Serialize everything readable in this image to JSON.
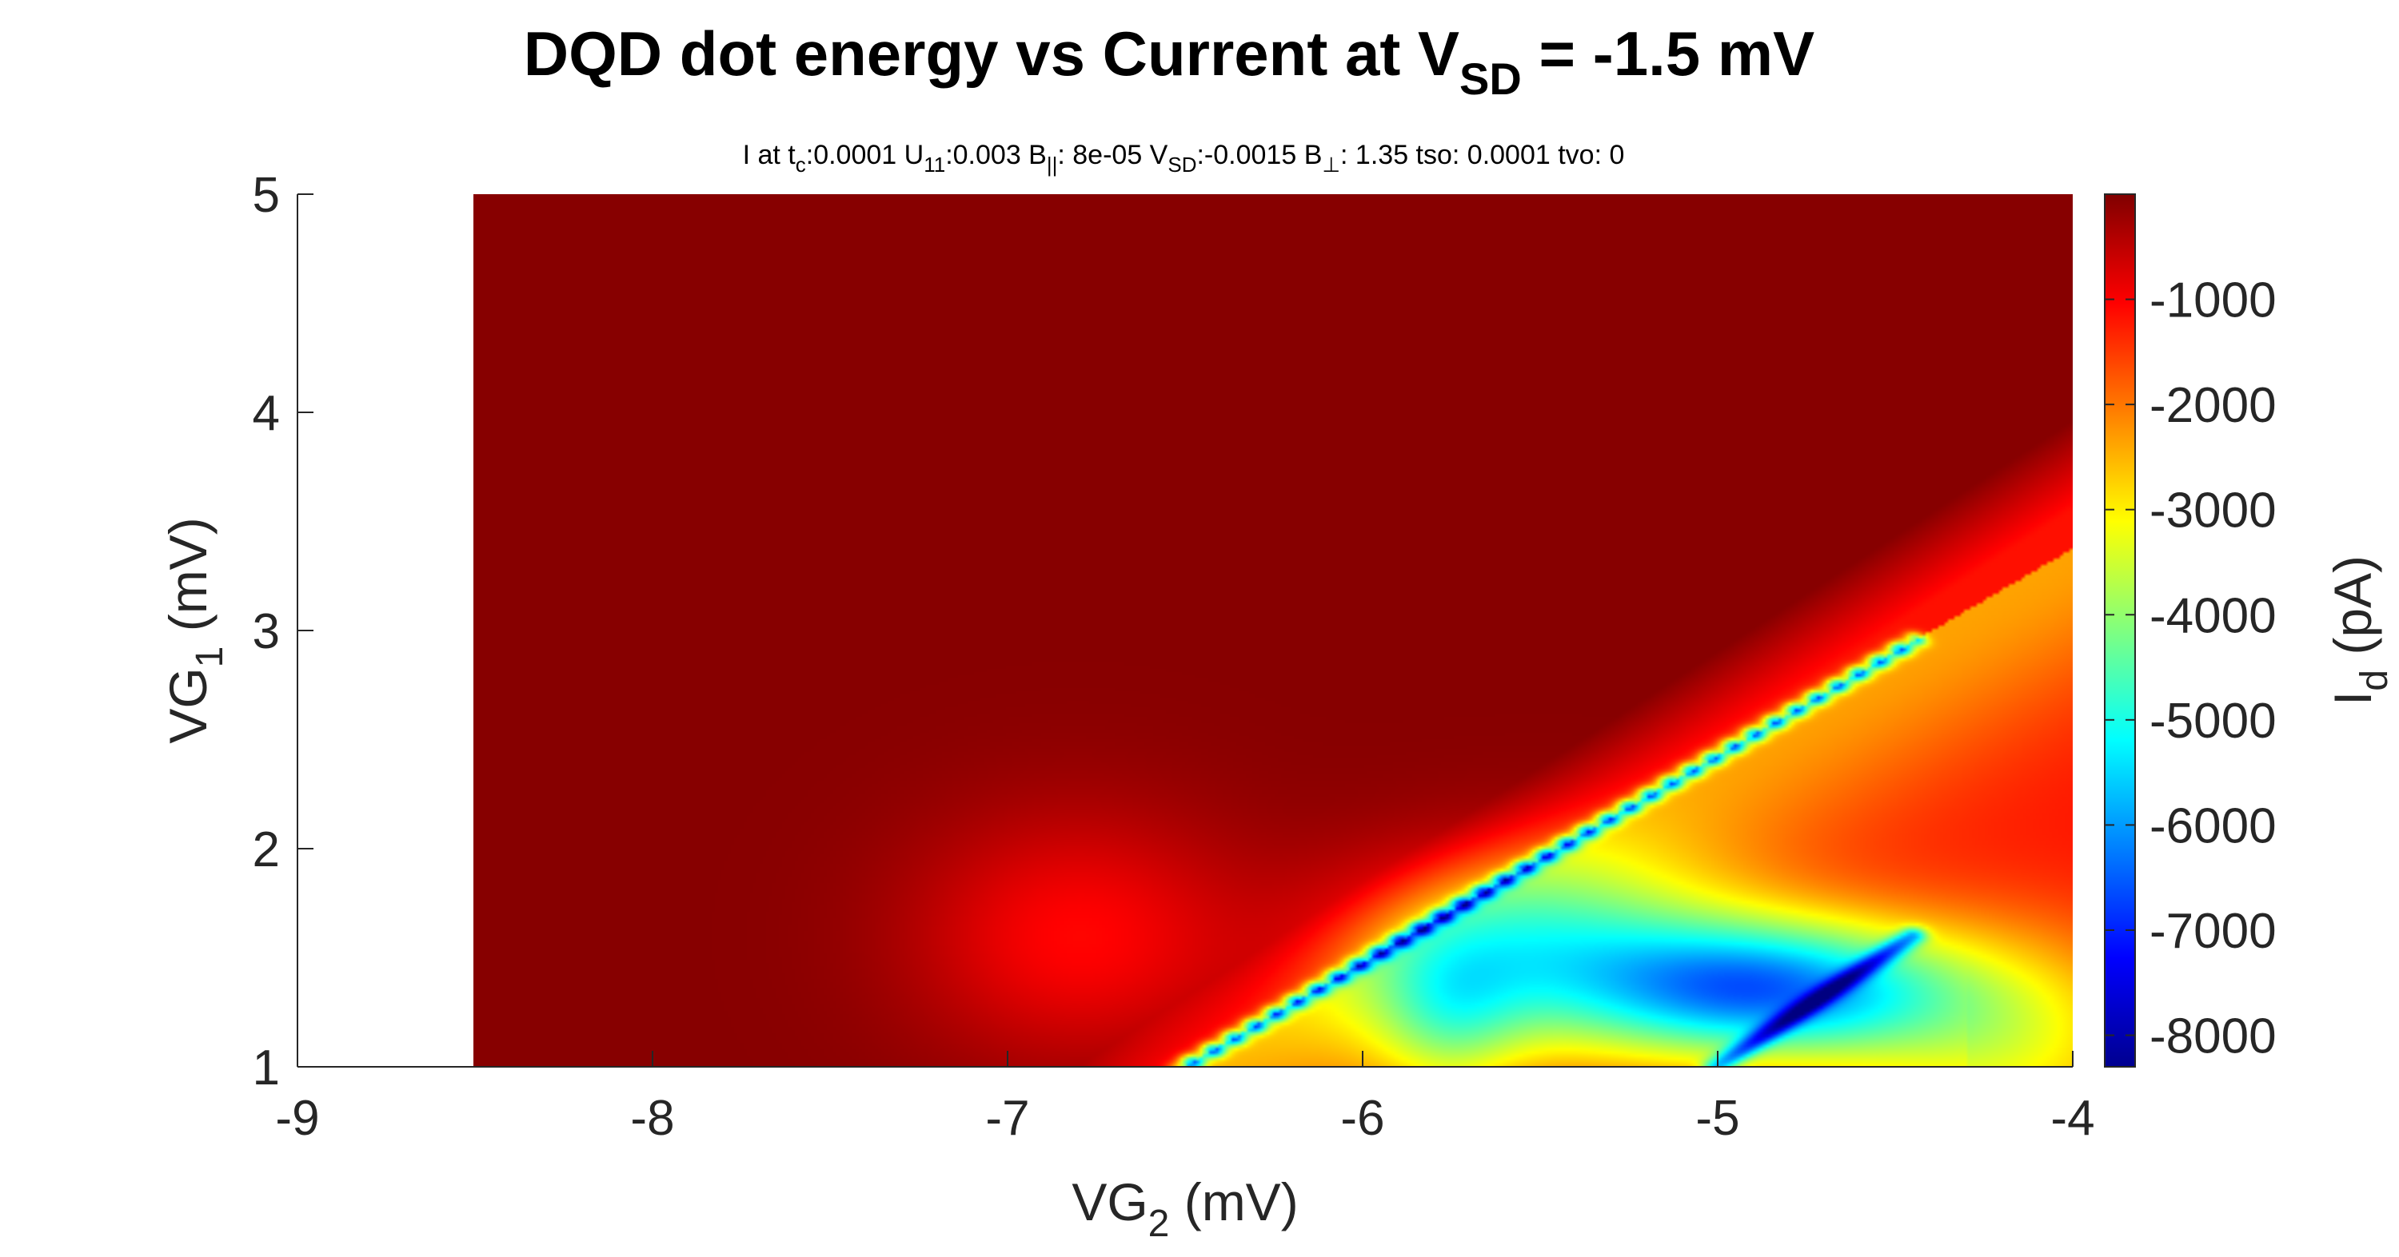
{
  "chart_data": {
    "type": "heatmap",
    "title": {
      "main": "DQD dot energy vs Current at V",
      "sub": "SD",
      "tail": " = -1.5 mV"
    },
    "subtitle": {
      "parts": [
        {
          "t": "I at t",
          "s": "normal"
        },
        {
          "t": "c",
          "s": "sub"
        },
        {
          "t": ":0.0001 U",
          "s": "normal"
        },
        {
          "t": "11",
          "s": "sub"
        },
        {
          "t": ":0.003 B",
          "s": "normal"
        },
        {
          "t": "||",
          "s": "sub"
        },
        {
          "t": ": 8e-05 V",
          "s": "normal"
        },
        {
          "t": "SD",
          "s": "sub"
        },
        {
          "t": ":-0.0015 B",
          "s": "normal"
        },
        {
          "t": "⊥",
          "s": "sub"
        },
        {
          "t": ": 1.35 tso: 0.0001 tvo: 0",
          "s": "normal"
        }
      ]
    },
    "xlabel": {
      "main": "VG",
      "sub": "2",
      "tail": " (mV)"
    },
    "ylabel": {
      "main": "VG",
      "sub": "1",
      "tail": " (mV)"
    },
    "colorbar_label": {
      "main": "I",
      "sub": "d",
      "tail": " (pA)"
    },
    "x_range": [
      -9,
      -4
    ],
    "y_range": [
      1,
      5
    ],
    "x_ticks": [
      -9,
      -8,
      -7,
      -6,
      -5,
      -4
    ],
    "y_ticks": [
      1,
      2,
      3,
      4,
      5
    ],
    "data_x_range": [
      -8.5,
      -4
    ],
    "color_range": [
      -8300,
      0
    ],
    "colorbar_ticks": [
      -1000,
      -2000,
      -3000,
      -4000,
      -5000,
      -6000,
      -7000,
      -8000
    ],
    "colormap": "jet",
    "features": {
      "background_pA": -60,
      "ridge_line": {
        "from": [
          -6.5,
          1.0
        ],
        "to": [
          -4.45,
          2.95
        ],
        "min_pA": -5600
      },
      "blue_region_center": [
        -4.85,
        1.35
      ],
      "blue_region_min_pA": -7600,
      "deep_line": {
        "from": [
          -5.0,
          1.0
        ],
        "to": [
          -4.45,
          1.6
        ],
        "min_pA": -8200
      }
    }
  }
}
